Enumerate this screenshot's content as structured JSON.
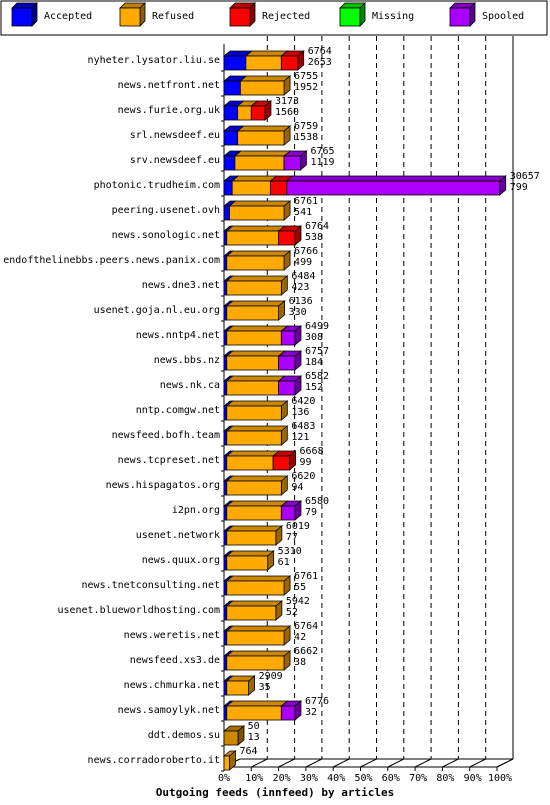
{
  "chart_data": {
    "type": "bar",
    "orientation": "horizontal",
    "stacked": true,
    "title": "Outgoing feeds (innfeed) by articles",
    "xlim": [
      0,
      100
    ],
    "xticks": [
      "0%",
      "10%",
      "20%",
      "30%",
      "40%",
      "50%",
      "60%",
      "70%",
      "80%",
      "90%",
      "100%"
    ],
    "legend_position": "top",
    "legend": [
      {
        "name": "Accepted",
        "color": "#0000ff"
      },
      {
        "name": "Refused",
        "color": "#ffaa00"
      },
      {
        "name": "Rejected",
        "color": "#ff0000"
      },
      {
        "name": "Missing",
        "color": "#00ff00"
      },
      {
        "name": "Spooled",
        "color": "#aa00ff"
      }
    ],
    "rows": [
      {
        "site": "nyheter.lysator.liu.se",
        "offered": "6764",
        "accepted": "2653",
        "segments": [
          8,
          13,
          6,
          0,
          0
        ]
      },
      {
        "site": "news.netfront.net",
        "offered": "6755",
        "accepted": "1952",
        "segments": [
          6,
          16,
          0,
          0,
          0
        ]
      },
      {
        "site": "news.furie.org.uk",
        "offered": "3173",
        "accepted": "1560",
        "segments": [
          5,
          5,
          5,
          0,
          0
        ]
      },
      {
        "site": "srl.newsdeef.eu",
        "offered": "6759",
        "accepted": "1538",
        "segments": [
          5,
          17,
          0,
          0,
          0
        ]
      },
      {
        "site": "srv.newsdeef.eu",
        "offered": "6765",
        "accepted": "1119",
        "segments": [
          4,
          18,
          0,
          0,
          6
        ]
      },
      {
        "site": "photonic.trudheim.com",
        "offered": "30657",
        "accepted": "799",
        "segments": [
          3,
          14,
          6,
          0,
          78
        ]
      },
      {
        "site": "peering.usenet.ovh",
        "offered": "6761",
        "accepted": "541",
        "segments": [
          2,
          20,
          0,
          0,
          0
        ]
      },
      {
        "site": "news.sonologic.net",
        "offered": "6764",
        "accepted": "538",
        "segments": [
          1,
          19,
          6,
          0,
          0
        ]
      },
      {
        "site": "endofthelinebbs.peers.news.panix.com",
        "offered": "6766",
        "accepted": "499",
        "segments": [
          1,
          21,
          0,
          0,
          0
        ]
      },
      {
        "site": "news.dne3.net",
        "offered": "6484",
        "accepted": "423",
        "segments": [
          1,
          20,
          0,
          0,
          0
        ]
      },
      {
        "site": "usenet.goja.nl.eu.org",
        "offered": "6136",
        "accepted": "330",
        "segments": [
          1,
          19,
          0,
          0,
          0
        ]
      },
      {
        "site": "news.nntp4.net",
        "offered": "6499",
        "accepted": "308",
        "segments": [
          1,
          20,
          0,
          0,
          5
        ]
      },
      {
        "site": "news.bbs.nz",
        "offered": "6757",
        "accepted": "184",
        "segments": [
          1,
          19,
          0,
          0,
          6
        ]
      },
      {
        "site": "news.nk.ca",
        "offered": "6582",
        "accepted": "152",
        "segments": [
          1,
          19,
          0,
          0,
          6
        ]
      },
      {
        "site": "nntp.comgw.net",
        "offered": "6420",
        "accepted": "136",
        "segments": [
          1,
          20,
          0,
          0,
          0
        ]
      },
      {
        "site": "newsfeed.bofh.team",
        "offered": "6483",
        "accepted": "121",
        "segments": [
          1,
          20,
          0,
          0,
          0
        ]
      },
      {
        "site": "news.tcpreset.net",
        "offered": "6668",
        "accepted": "99",
        "segments": [
          1,
          17,
          6,
          0,
          0
        ]
      },
      {
        "site": "news.hispagatos.org",
        "offered": "6620",
        "accepted": "94",
        "segments": [
          1,
          20,
          0,
          0,
          0
        ]
      },
      {
        "site": "i2pn.org",
        "offered": "6580",
        "accepted": "79",
        "segments": [
          1,
          20,
          0,
          0,
          5
        ]
      },
      {
        "site": "usenet.network",
        "offered": "6019",
        "accepted": "77",
        "segments": [
          1,
          18,
          0,
          0,
          0
        ]
      },
      {
        "site": "news.quux.org",
        "offered": "5310",
        "accepted": "61",
        "segments": [
          1,
          15,
          0,
          0,
          0
        ]
      },
      {
        "site": "news.tnetconsulting.net",
        "offered": "6761",
        "accepted": "55",
        "segments": [
          1,
          21,
          0,
          0,
          0
        ]
      },
      {
        "site": "usenet.blueworldhosting.com",
        "offered": "5942",
        "accepted": "52",
        "segments": [
          1,
          18,
          0,
          0,
          0
        ]
      },
      {
        "site": "news.weretis.net",
        "offered": "6764",
        "accepted": "42",
        "segments": [
          1,
          21,
          0,
          0,
          0
        ]
      },
      {
        "site": "newsfeed.xs3.de",
        "offered": "6662",
        "accepted": "38",
        "segments": [
          1,
          21,
          0,
          0,
          0
        ]
      },
      {
        "site": "news.chmurka.net",
        "offered": "2909",
        "accepted": "35",
        "segments": [
          1,
          8,
          0,
          0,
          0
        ]
      },
      {
        "site": "news.samoylyk.net",
        "offered": "6776",
        "accepted": "32",
        "segments": [
          1,
          20,
          0,
          0,
          5
        ]
      },
      {
        "site": "ddt.demos.su",
        "offered": "50",
        "accepted": "13",
        "segments": [
          0,
          0,
          0,
          0,
          0
        ]
      },
      {
        "site": "news.corradoroberto.it",
        "offered": "764",
        "accepted": "",
        "segments": [
          0,
          2,
          0,
          0,
          0
        ]
      }
    ]
  }
}
